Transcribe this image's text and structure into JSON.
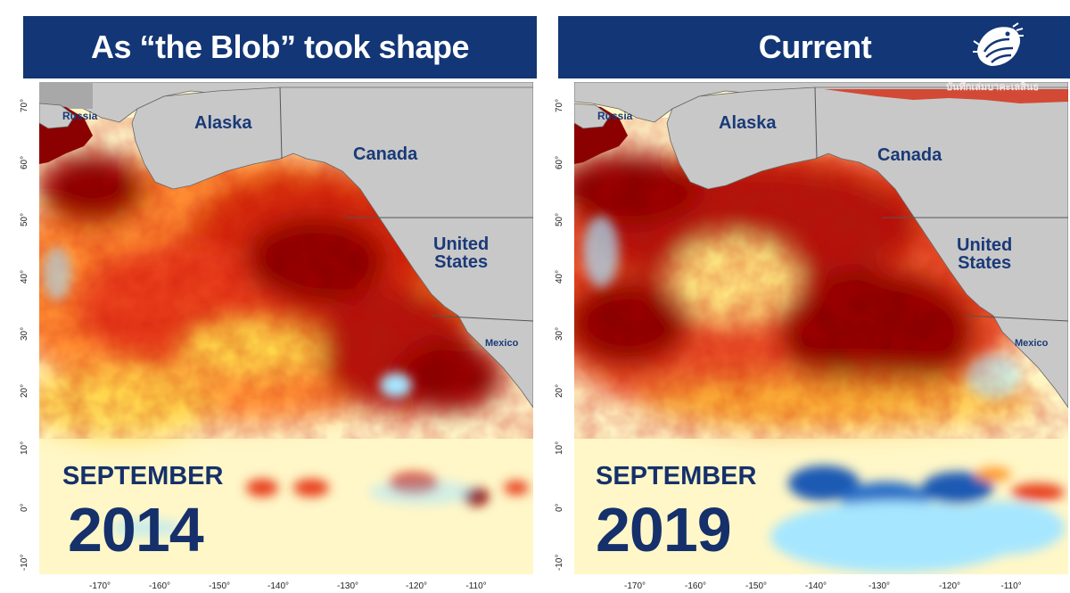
{
  "panels": [
    {
      "title": "As “the Blob” took shape",
      "month": "SEPTEMBER",
      "year": "2014",
      "labels": {
        "russia": "Russia",
        "alaska": "Alaska",
        "canada": "Canada",
        "us_line1": "United",
        "us_line2": "States",
        "mexico": "Mexico"
      }
    },
    {
      "title": "Current",
      "month": "SEPTEMBER",
      "year": "2019",
      "labels": {
        "russia": "Russia",
        "alaska": "Alaska",
        "canada": "Canada",
        "us_line1": "United",
        "us_line2": "States",
        "mexico": "Mexico"
      },
      "watermark": "บันทึกเล่มบาคะเลสินธ"
    }
  ],
  "lat_ticks": [
    "70°",
    "60°",
    "50°",
    "40°",
    "30°",
    "20°",
    "10°",
    "0°",
    "-10°"
  ],
  "lon_ticks": [
    "-170°",
    "-160°",
    "-150°",
    "-140°",
    "-130°",
    "-120°",
    "-110°"
  ],
  "colors": {
    "header_bg": "#123676",
    "header_text": "#ffffff",
    "label_text": "#1a3a78",
    "land": "#c8c8c8",
    "anomaly_strong_warm": "#8b0000",
    "anomaly_warm": "#e8401a",
    "anomaly_mild_warm": "#ffd84a",
    "anomaly_neutral": "#fffbe0",
    "anomaly_cool": "#a6e6ff",
    "anomaly_strong_cool": "#1e5ab4"
  }
}
